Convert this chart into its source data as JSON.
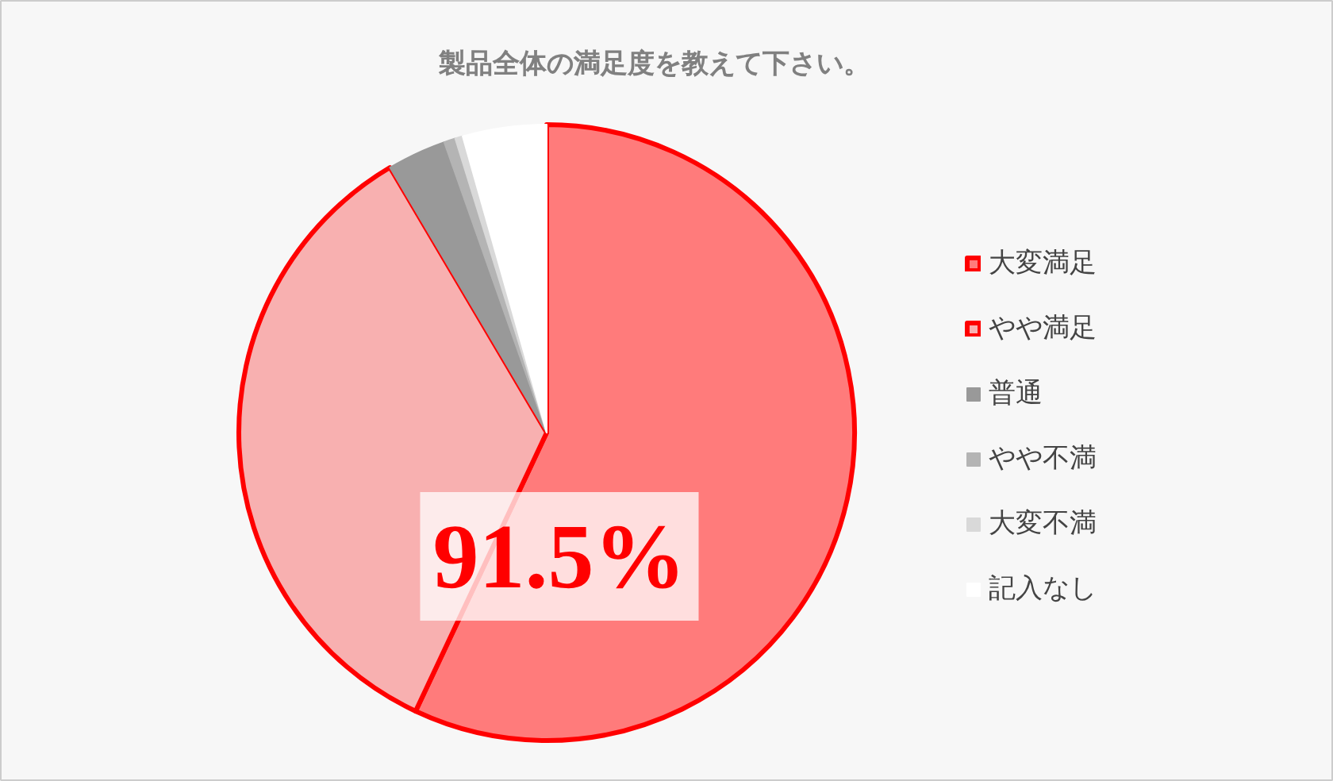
{
  "chart_data": {
    "type": "pie",
    "title": "製品全体の満足度を教えて下さい。",
    "categories": [
      "大変満足",
      "やや満足",
      "普通",
      "やや不満",
      "大変不満",
      "記入なし"
    ],
    "values": [
      57.0,
      34.5,
      3.1,
      0.6,
      0.4,
      4.4
    ],
    "colors": [
      "#ff7b7b",
      "#f8b0b0",
      "#999999",
      "#b4b4b4",
      "#d9d9d9",
      "#ffffff"
    ],
    "annotations": [
      "91.5%"
    ],
    "legend": "right"
  }
}
